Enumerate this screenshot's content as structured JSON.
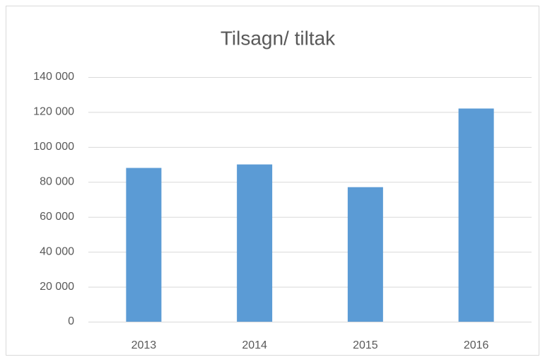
{
  "chart_data": {
    "type": "bar",
    "title": "Tilsagn/ tiltak",
    "categories": [
      "2013",
      "2014",
      "2015",
      "2016"
    ],
    "values": [
      88000,
      90000,
      77000,
      122000
    ],
    "color": "#5b9bd5",
    "ylim": [
      0,
      140000
    ],
    "yticks": [
      0,
      {
        "value": 20000,
        "label": "20 000"
      },
      {
        "value": 40000,
        "label": "40 000"
      },
      {
        "value": 60000,
        "label": "60 000"
      },
      {
        "value": 80000,
        "label": "80 000"
      },
      {
        "value": 100000,
        "label": "100 000"
      },
      {
        "value": 120000,
        "label": "120 000"
      },
      {
        "value": 140000,
        "label": "140 000"
      }
    ],
    "grid": true
  }
}
